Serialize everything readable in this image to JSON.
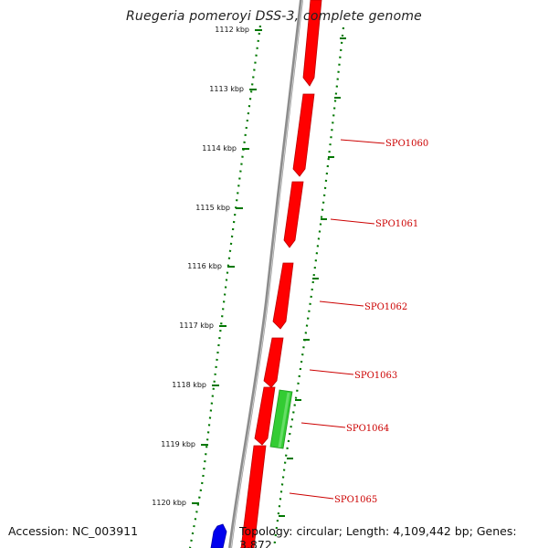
{
  "title": "Ruegeria pomeroyi DSS-3, complete genome",
  "footer": {
    "accession": "Accession: NC_003911",
    "summary": "Topology: circular; Length: 4,109,442 bp; Genes: 3,872"
  },
  "kbp_labels": [
    "1112 kbp",
    "1113 kbp",
    "1114 kbp",
    "1115 kbp",
    "1116 kbp",
    "1117 kbp",
    "1118 kbp",
    "1119 kbp",
    "1120 kbp"
  ],
  "gene_labels": [
    "SPO1060",
    "SPO1061",
    "SPO1062",
    "SPO1063",
    "SPO1064",
    "SPO1065"
  ],
  "colors": {
    "forward_gene": "#ff0000",
    "other_gene": "#33cc33",
    "reverse_gene": "#0000ee",
    "backbone": "#8c8c8c",
    "ticks": "#007700",
    "label_red": "#cc0000"
  }
}
